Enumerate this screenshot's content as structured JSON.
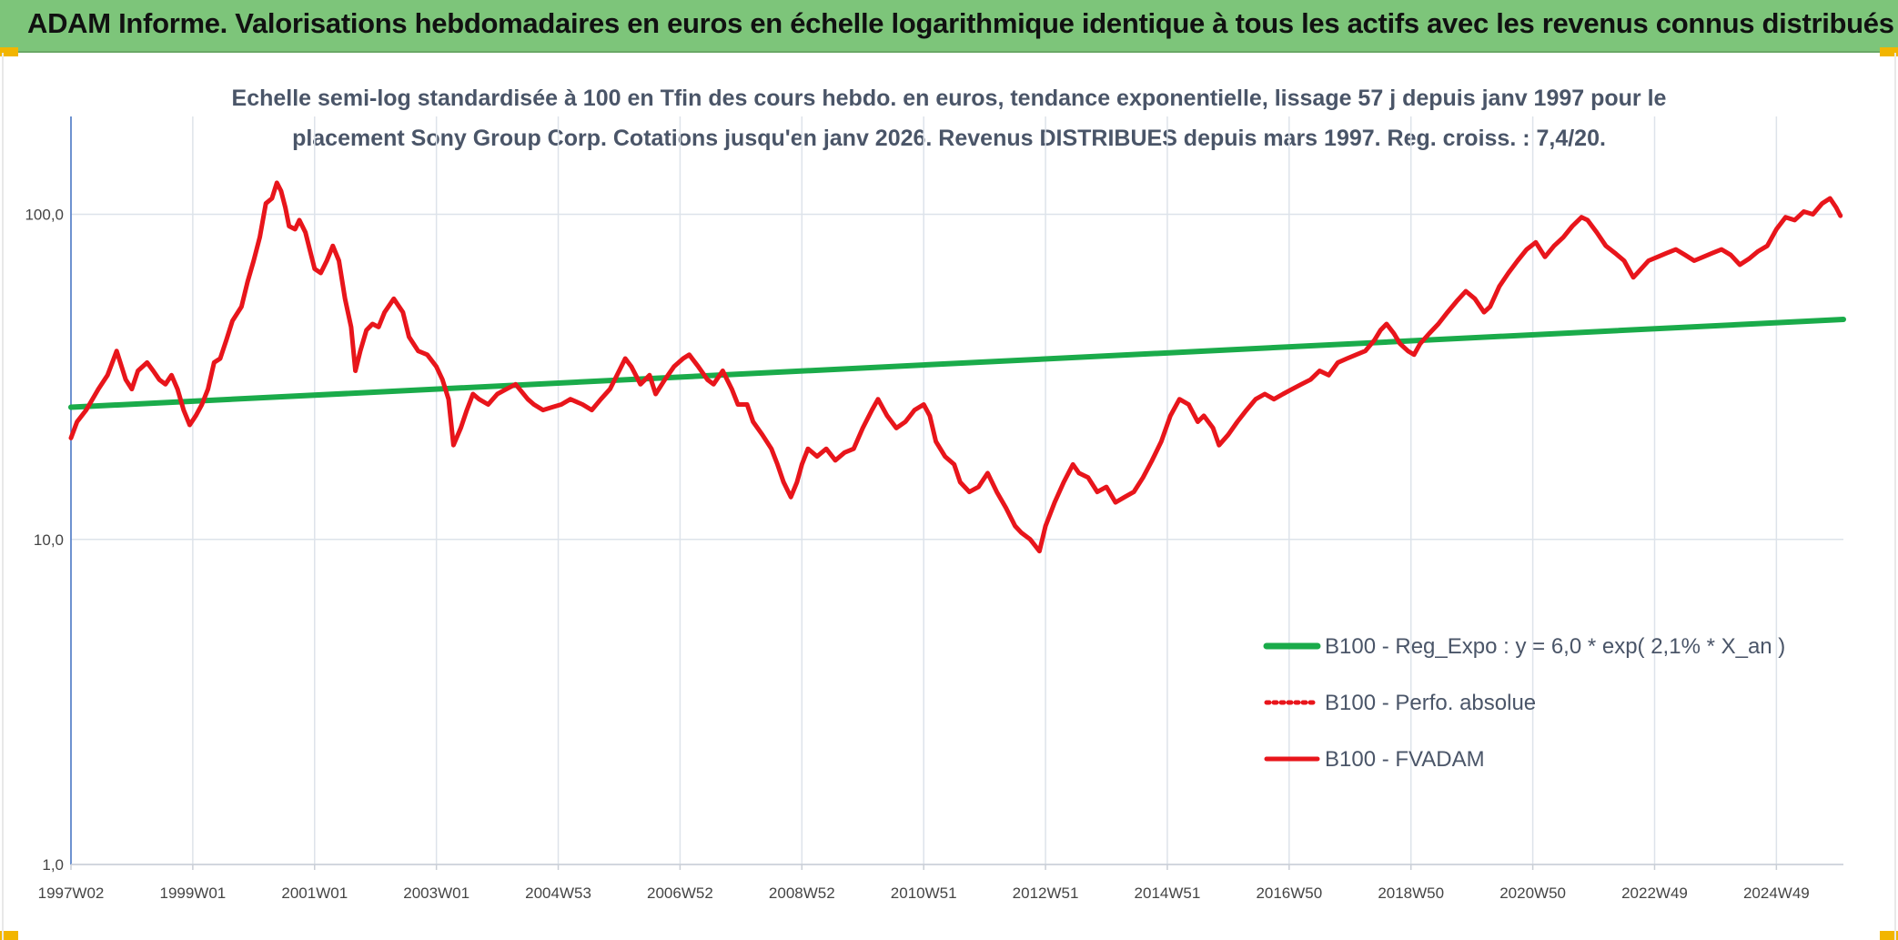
{
  "banner": {
    "title": "ADAM Informe. Valorisations hebdomadaires en euros en échelle logarithmique identique à tous les actifs avec les revenus connus distribués",
    "color": "#7dc57a"
  },
  "chart_data": {
    "type": "line",
    "title_line1": "Echelle semi-log standardisée à 100 en Tfin des cours hebdo. en euros, tendance exponentielle, lissage 57 j depuis janv 1997 pour le",
    "title_line2": "placement Sony Group Corp. Cotations jusqu'en janv 2026. Revenus DISTRIBUES depuis mars 1997. Reg. croiss. : 7,4/20.",
    "y_scale": "log",
    "ylim": [
      1,
      200
    ],
    "y_ticks": [
      {
        "value": 1,
        "label": "1,0"
      },
      {
        "value": 10,
        "label": "10,0"
      },
      {
        "value": 100,
        "label": "100,0"
      }
    ],
    "xlim": [
      1997.0,
      2026.1
    ],
    "x_ticks": [
      {
        "x": 1997.0,
        "label": "1997W02"
      },
      {
        "x": 1999.0,
        "label": "1999W01"
      },
      {
        "x": 2001.0,
        "label": "2001W01"
      },
      {
        "x": 2003.0,
        "label": "2003W01"
      },
      {
        "x": 2005.0,
        "label": "2004W53"
      },
      {
        "x": 2007.0,
        "label": "2006W52"
      },
      {
        "x": 2009.0,
        "label": "2008W52"
      },
      {
        "x": 2011.0,
        "label": "2010W51"
      },
      {
        "x": 2013.0,
        "label": "2012W51"
      },
      {
        "x": 2015.0,
        "label": "2014W51"
      },
      {
        "x": 2017.0,
        "label": "2016W50"
      },
      {
        "x": 2019.0,
        "label": "2018W50"
      },
      {
        "x": 2021.0,
        "label": "2020W50"
      },
      {
        "x": 2023.0,
        "label": "2022W49"
      },
      {
        "x": 2025.0,
        "label": "2024W49"
      }
    ],
    "grid": true,
    "legend_position": "right",
    "series": [
      {
        "name": "B100 - Reg_Expo : y = 6,0 * exp( 2,1% *  X_an )",
        "color": "#1aab4a",
        "style": "solid",
        "points": [
          [
            1997.0,
            25.5
          ],
          [
            2026.1,
            47.5
          ]
        ]
      },
      {
        "name": "B100 - Perfo. absolue",
        "color": "#e8151b",
        "style": "dotted",
        "points": []
      },
      {
        "name": "B100 - FVADAM",
        "color": "#e8151b",
        "style": "solid",
        "points": [
          [
            1997.0,
            20.5
          ],
          [
            1997.1,
            23
          ],
          [
            1997.25,
            25
          ],
          [
            1997.45,
            29
          ],
          [
            1997.6,
            32
          ],
          [
            1997.75,
            38
          ],
          [
            1997.9,
            31
          ],
          [
            1998.0,
            29
          ],
          [
            1998.1,
            33
          ],
          [
            1998.25,
            35
          ],
          [
            1998.35,
            33
          ],
          [
            1998.45,
            31
          ],
          [
            1998.55,
            30
          ],
          [
            1998.65,
            32
          ],
          [
            1998.75,
            29
          ],
          [
            1998.85,
            25
          ],
          [
            1998.95,
            22.5
          ],
          [
            1999.05,
            24
          ],
          [
            1999.15,
            26
          ],
          [
            1999.25,
            29
          ],
          [
            1999.35,
            35
          ],
          [
            1999.45,
            36
          ],
          [
            1999.55,
            41
          ],
          [
            1999.65,
            47
          ],
          [
            1999.8,
            52
          ],
          [
            1999.9,
            62
          ],
          [
            2000.0,
            72
          ],
          [
            2000.1,
            85
          ],
          [
            2000.2,
            108
          ],
          [
            2000.3,
            112
          ],
          [
            2000.38,
            125
          ],
          [
            2000.45,
            118
          ],
          [
            2000.52,
            105
          ],
          [
            2000.58,
            92
          ],
          [
            2000.68,
            90
          ],
          [
            2000.75,
            96
          ],
          [
            2000.85,
            88
          ],
          [
            2000.92,
            78
          ],
          [
            2001.0,
            68
          ],
          [
            2001.1,
            66
          ],
          [
            2001.2,
            72
          ],
          [
            2001.3,
            80
          ],
          [
            2001.4,
            72
          ],
          [
            2001.5,
            55
          ],
          [
            2001.6,
            45
          ],
          [
            2001.67,
            33
          ],
          [
            2001.75,
            38
          ],
          [
            2001.85,
            44
          ],
          [
            2001.95,
            46
          ],
          [
            2002.05,
            45
          ],
          [
            2002.15,
            50
          ],
          [
            2002.3,
            55
          ],
          [
            2002.45,
            50
          ],
          [
            2002.55,
            42
          ],
          [
            2002.7,
            38
          ],
          [
            2002.85,
            37
          ],
          [
            2003.0,
            34
          ],
          [
            2003.1,
            31
          ],
          [
            2003.2,
            27
          ],
          [
            2003.28,
            19.5
          ],
          [
            2003.4,
            22
          ],
          [
            2003.5,
            25
          ],
          [
            2003.6,
            28
          ],
          [
            2003.7,
            27
          ],
          [
            2003.85,
            26
          ],
          [
            2004.0,
            28
          ],
          [
            2004.15,
            29
          ],
          [
            2004.3,
            30
          ],
          [
            2004.5,
            27
          ],
          [
            2004.6,
            26
          ],
          [
            2004.75,
            25
          ],
          [
            2004.9,
            25.5
          ],
          [
            2005.05,
            26
          ],
          [
            2005.2,
            27
          ],
          [
            2005.4,
            26
          ],
          [
            2005.55,
            25
          ],
          [
            2005.7,
            27
          ],
          [
            2005.85,
            29
          ],
          [
            2006.0,
            33
          ],
          [
            2006.1,
            36
          ],
          [
            2006.2,
            34
          ],
          [
            2006.35,
            30
          ],
          [
            2006.5,
            32
          ],
          [
            2006.6,
            28
          ],
          [
            2006.75,
            31
          ],
          [
            2006.9,
            34
          ],
          [
            2007.05,
            36
          ],
          [
            2007.15,
            37
          ],
          [
            2007.3,
            34
          ],
          [
            2007.45,
            31
          ],
          [
            2007.55,
            30
          ],
          [
            2007.7,
            33
          ],
          [
            2007.85,
            29
          ],
          [
            2007.95,
            26
          ],
          [
            2008.1,
            26
          ],
          [
            2008.2,
            23
          ],
          [
            2008.35,
            21
          ],
          [
            2008.5,
            19
          ],
          [
            2008.6,
            17
          ],
          [
            2008.7,
            15
          ],
          [
            2008.82,
            13.5
          ],
          [
            2008.92,
            15
          ],
          [
            2009.0,
            17
          ],
          [
            2009.1,
            19
          ],
          [
            2009.25,
            18
          ],
          [
            2009.4,
            19
          ],
          [
            2009.55,
            17.5
          ],
          [
            2009.7,
            18.5
          ],
          [
            2009.85,
            19
          ],
          [
            2010.0,
            22
          ],
          [
            2010.15,
            25
          ],
          [
            2010.25,
            27
          ],
          [
            2010.4,
            24
          ],
          [
            2010.55,
            22
          ],
          [
            2010.7,
            23
          ],
          [
            2010.85,
            25
          ],
          [
            2011.0,
            26
          ],
          [
            2011.1,
            24
          ],
          [
            2011.2,
            20
          ],
          [
            2011.35,
            18
          ],
          [
            2011.5,
            17
          ],
          [
            2011.6,
            15
          ],
          [
            2011.75,
            14
          ],
          [
            2011.9,
            14.5
          ],
          [
            2012.05,
            16
          ],
          [
            2012.2,
            14
          ],
          [
            2012.35,
            12.5
          ],
          [
            2012.5,
            11
          ],
          [
            2012.6,
            10.5
          ],
          [
            2012.75,
            10
          ],
          [
            2012.9,
            9.2
          ],
          [
            2013.0,
            11
          ],
          [
            2013.15,
            13
          ],
          [
            2013.3,
            15
          ],
          [
            2013.45,
            17
          ],
          [
            2013.55,
            16
          ],
          [
            2013.7,
            15.5
          ],
          [
            2013.85,
            14
          ],
          [
            2014.0,
            14.5
          ],
          [
            2014.15,
            13
          ],
          [
            2014.3,
            13.5
          ],
          [
            2014.45,
            14
          ],
          [
            2014.6,
            15.5
          ],
          [
            2014.75,
            17.5
          ],
          [
            2014.9,
            20
          ],
          [
            2015.05,
            24
          ],
          [
            2015.2,
            27
          ],
          [
            2015.35,
            26
          ],
          [
            2015.5,
            23
          ],
          [
            2015.6,
            24
          ],
          [
            2015.75,
            22
          ],
          [
            2015.85,
            19.5
          ],
          [
            2016.0,
            21
          ],
          [
            2016.15,
            23
          ],
          [
            2016.3,
            25
          ],
          [
            2016.45,
            27
          ],
          [
            2016.6,
            28
          ],
          [
            2016.75,
            27
          ],
          [
            2016.9,
            28
          ],
          [
            2017.05,
            29
          ],
          [
            2017.2,
            30
          ],
          [
            2017.35,
            31
          ],
          [
            2017.5,
            33
          ],
          [
            2017.65,
            32
          ],
          [
            2017.8,
            35
          ],
          [
            2017.95,
            36
          ],
          [
            2018.1,
            37
          ],
          [
            2018.25,
            38
          ],
          [
            2018.4,
            41
          ],
          [
            2018.5,
            44
          ],
          [
            2018.6,
            46
          ],
          [
            2018.72,
            43
          ],
          [
            2018.82,
            40
          ],
          [
            2018.95,
            38
          ],
          [
            2019.05,
            37
          ],
          [
            2019.15,
            40
          ],
          [
            2019.3,
            43
          ],
          [
            2019.45,
            46
          ],
          [
            2019.6,
            50
          ],
          [
            2019.75,
            54
          ],
          [
            2019.9,
            58
          ],
          [
            2020.05,
            55
          ],
          [
            2020.2,
            50
          ],
          [
            2020.3,
            52
          ],
          [
            2020.45,
            60
          ],
          [
            2020.6,
            66
          ],
          [
            2020.75,
            72
          ],
          [
            2020.9,
            78
          ],
          [
            2021.05,
            82
          ],
          [
            2021.2,
            74
          ],
          [
            2021.35,
            80
          ],
          [
            2021.5,
            85
          ],
          [
            2021.65,
            92
          ],
          [
            2021.8,
            98
          ],
          [
            2021.9,
            96
          ],
          [
            2022.05,
            88
          ],
          [
            2022.2,
            80
          ],
          [
            2022.35,
            76
          ],
          [
            2022.5,
            72
          ],
          [
            2022.65,
            64
          ],
          [
            2022.75,
            67
          ],
          [
            2022.9,
            72
          ],
          [
            2023.05,
            74
          ],
          [
            2023.2,
            76
          ],
          [
            2023.35,
            78
          ],
          [
            2023.5,
            75
          ],
          [
            2023.65,
            72
          ],
          [
            2023.8,
            74
          ],
          [
            2023.95,
            76
          ],
          [
            2024.1,
            78
          ],
          [
            2024.25,
            75
          ],
          [
            2024.4,
            70
          ],
          [
            2024.55,
            73
          ],
          [
            2024.7,
            77
          ],
          [
            2024.85,
            80
          ],
          [
            2025.0,
            90
          ],
          [
            2025.15,
            98
          ],
          [
            2025.3,
            96
          ],
          [
            2025.45,
            102
          ],
          [
            2025.6,
            100
          ],
          [
            2025.75,
            108
          ],
          [
            2025.88,
            112
          ],
          [
            2025.98,
            105
          ],
          [
            2026.05,
            99
          ]
        ]
      }
    ]
  }
}
